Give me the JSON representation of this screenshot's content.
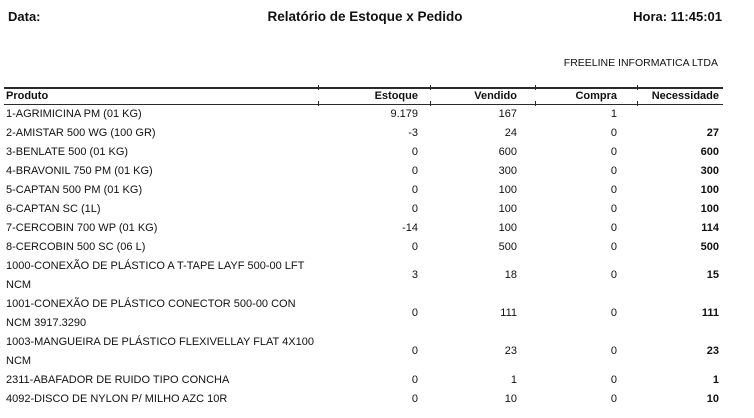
{
  "header": {
    "date_label": "Data:",
    "title": "Relatório de Estoque x Pedido",
    "time_label": "Hora: 11:45:01",
    "company": "FREELINE INFORMATICA LTDA"
  },
  "table": {
    "columns": [
      "Produto",
      "Estoque",
      "Vendido",
      "Compra",
      "Necessidade"
    ],
    "rows": [
      {
        "produto": "1-AGRIMICINA PM (01 KG)",
        "estoque": "9.179",
        "vendido": "167",
        "compra": "1",
        "necessidade": ""
      },
      {
        "produto": "2-AMISTAR 500 WG (100 GR)",
        "estoque": "-3",
        "vendido": "24",
        "compra": "0",
        "necessidade": "27"
      },
      {
        "produto": "3-BENLATE 500 (01 KG)",
        "estoque": "0",
        "vendido": "600",
        "compra": "0",
        "necessidade": "600"
      },
      {
        "produto": "4-BRAVONIL 750 PM (01 KG)",
        "estoque": "0",
        "vendido": "300",
        "compra": "0",
        "necessidade": "300"
      },
      {
        "produto": "5-CAPTAN 500 PM (01 KG)",
        "estoque": "0",
        "vendido": "100",
        "compra": "0",
        "necessidade": "100"
      },
      {
        "produto": "6-CAPTAN SC (1L)",
        "estoque": "0",
        "vendido": "100",
        "compra": "0",
        "necessidade": "100"
      },
      {
        "produto": "7-CERCOBIN 700 WP (01 KG)",
        "estoque": "-14",
        "vendido": "100",
        "compra": "0",
        "necessidade": "114"
      },
      {
        "produto": "8-CERCOBIN 500 SC (06 L)",
        "estoque": "0",
        "vendido": "500",
        "compra": "0",
        "necessidade": "500"
      },
      {
        "produto": "1000-CONEXÃO DE PLÁSTICO A T-TAPE LAYF 500-00 LFT NCM",
        "estoque": "3",
        "vendido": "18",
        "compra": "0",
        "necessidade": "15"
      },
      {
        "produto": "1001-CONEXÃO DE PLÁSTICO CONECTOR 500-00 CON NCM 3917.3290",
        "estoque": "0",
        "vendido": "111",
        "compra": "0",
        "necessidade": "111"
      },
      {
        "produto": "1003-MANGUEIRA DE PLÁSTICO FLEXIVELLAY FLAT 4X100 NCM",
        "estoque": "0",
        "vendido": "23",
        "compra": "0",
        "necessidade": "23"
      },
      {
        "produto": "2311-ABAFADOR DE RUIDO TIPO CONCHA",
        "estoque": "0",
        "vendido": "1",
        "compra": "0",
        "necessidade": "1"
      },
      {
        "produto": "4092-DISCO DE NYLON P/ MILHO AZC 10R",
        "estoque": "0",
        "vendido": "10",
        "compra": "0",
        "necessidade": "10"
      }
    ]
  }
}
